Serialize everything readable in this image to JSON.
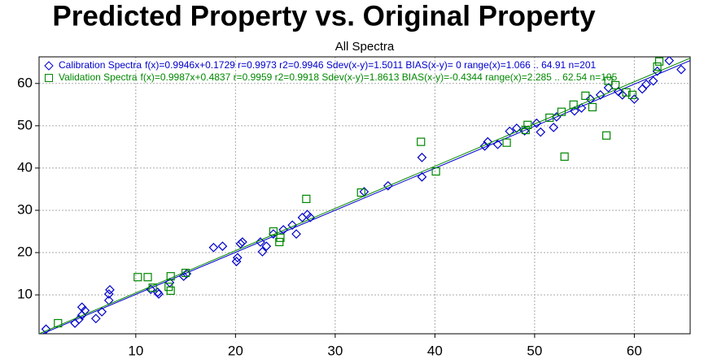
{
  "chart_data": {
    "type": "scatter",
    "title": "Predicted Property vs. Original Property",
    "subtitle": "All Spectra",
    "xlim": [
      0.3,
      65.6
    ],
    "ylim": [
      0.8,
      66.3
    ],
    "xticks": [
      10,
      20,
      30,
      40,
      50,
      60
    ],
    "yticks": [
      10,
      20,
      30,
      40,
      50,
      60
    ],
    "grid": true,
    "series": [
      {
        "name": "Calibration Spectra",
        "stats": "f(x)=0.9946x+0.1729  r=0.9973  r2=0.9946  Sdev(x-y)=1.5011  BIAS(x-y)=  0  range(x)=1.066 .. 64.91  n=201",
        "color": "#0000cc",
        "marker": "diamond",
        "fit": {
          "slope": 0.9946,
          "intercept": 0.1729
        },
        "x": [
          1.0,
          3.9,
          4.3,
          4.6,
          4.9,
          4.6,
          6.0,
          6.6,
          7.3,
          7.3,
          7.4,
          11.5,
          12.2,
          12.3,
          13.4,
          14.8,
          15.1,
          17.8,
          18.7,
          20.1,
          20.2,
          20.5,
          20.7,
          22.5,
          22.7,
          23.1,
          23.8,
          24.8,
          25.7,
          26.1,
          26.7,
          27.2,
          27.5,
          32.9,
          35.3,
          38.7,
          38.7,
          45.0,
          45.3,
          46.3,
          47.5,
          48.2,
          49.0,
          50.2,
          50.6,
          51.9,
          52.2,
          54.0,
          54.7,
          55.6,
          56.6,
          57.4,
          58.4,
          58.8,
          60.0,
          60.8,
          61.2,
          61.9,
          62.3,
          63.5,
          64.7
        ],
        "values": [
          1.9,
          3.3,
          4.2,
          5.2,
          6.3,
          7.1,
          4.4,
          6.0,
          10.2,
          8.7,
          11.2,
          11.3,
          10.6,
          10.2,
          12.9,
          14.4,
          15.0,
          21.2,
          21.5,
          17.9,
          18.8,
          22.1,
          22.5,
          22.5,
          20.2,
          21.5,
          24.4,
          25.4,
          26.5,
          24.4,
          28.3,
          29.0,
          28.3,
          34.4,
          35.8,
          42.5,
          37.9,
          45.2,
          46.2,
          45.6,
          48.7,
          49.4,
          48.8,
          50.6,
          48.5,
          49.6,
          52.1,
          53.5,
          54.2,
          56.3,
          57.3,
          59.0,
          58.1,
          57.3,
          56.3,
          58.7,
          59.8,
          60.6,
          62.9,
          65.4,
          63.3
        ]
      },
      {
        "name": "Validation Spectra",
        "stats": "f(x)=0.9987x+0.4837  r=0.9959  r2=0.9918  Sdev(x-y)=1.8613  BIAS(x-y)=-0.4344  range(x)=2.285 .. 62.54  n=105",
        "color": "#008800",
        "marker": "square",
        "fit": {
          "slope": 0.9987,
          "intercept": 0.4837
        },
        "x": [
          2.2,
          10.2,
          11.2,
          11.7,
          13.3,
          13.5,
          13.5,
          15.0,
          23.8,
          24.4,
          24.5,
          27.1,
          32.6,
          38.6,
          40.1,
          47.2,
          49.1,
          49.3,
          51.5,
          52.7,
          53.0,
          53.9,
          55.1,
          55.8,
          57.2,
          57.4,
          58.1,
          59.2,
          59.8,
          62.3,
          62.5
        ],
        "values": [
          3.3,
          14.2,
          14.2,
          11.7,
          11.9,
          11.0,
          14.4,
          15.2,
          25.0,
          22.5,
          23.5,
          32.7,
          34.2,
          46.2,
          39.2,
          46.0,
          49.0,
          50.2,
          51.9,
          53.3,
          42.7,
          55.0,
          57.1,
          54.4,
          47.7,
          60.6,
          59.6,
          57.9,
          57.3,
          64.0,
          65.2
        ]
      }
    ]
  }
}
